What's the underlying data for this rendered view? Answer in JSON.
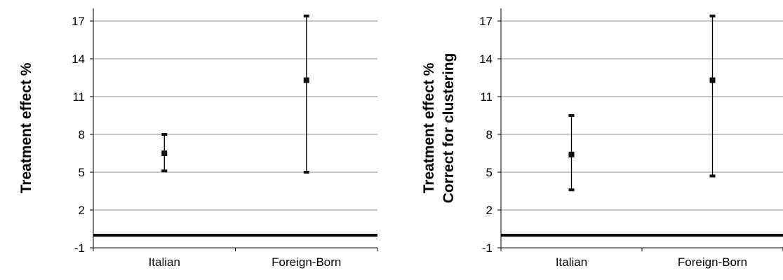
{
  "chart_data": [
    {
      "type": "scatter",
      "error_bars": true,
      "categories": [
        "Italian",
        "Foreign-Born"
      ],
      "values": [
        6.5,
        12.3
      ],
      "lower": [
        5.1,
        5.0
      ],
      "upper": [
        8.0,
        17.4
      ],
      "ylabel": [
        "Treatment effect %"
      ],
      "yticks": [
        -1,
        2,
        5,
        8,
        11,
        14,
        17
      ],
      "ylim": [
        -1,
        17.9
      ],
      "reference_line": 0,
      "grid": true
    },
    {
      "type": "scatter",
      "error_bars": true,
      "categories": [
        "Italian",
        "Foreign-Born"
      ],
      "values": [
        6.4,
        12.3
      ],
      "lower": [
        3.6,
        4.7
      ],
      "upper": [
        9.5,
        17.4
      ],
      "ylabel": [
        "Treatment effect %",
        "Correct for clustering"
      ],
      "yticks": [
        -1,
        2,
        5,
        8,
        11,
        14,
        17
      ],
      "ylim": [
        -1,
        17.9
      ],
      "reference_line": 0,
      "grid": true
    }
  ]
}
